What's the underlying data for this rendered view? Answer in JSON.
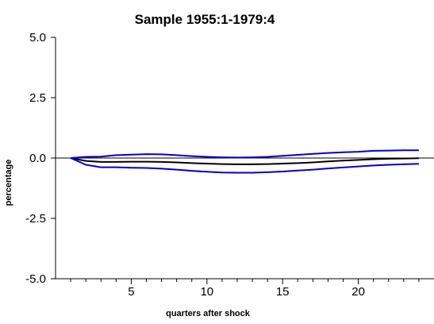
{
  "chart_data": {
    "type": "line",
    "title": "Sample 1955:1-1979:4",
    "xlabel": "quarters after shock",
    "ylabel": "percentage",
    "xlim": [
      0,
      25
    ],
    "ylim": [
      -5.0,
      5.0
    ],
    "xticks": [
      5,
      10,
      15,
      20
    ],
    "yticks": [
      "5.0",
      "2.5",
      "0.0",
      "-2.5",
      "-5.0"
    ],
    "yticks_values": [
      5.0,
      2.5,
      0.0,
      -2.5,
      -5.0
    ],
    "x": [
      1,
      2,
      3,
      4,
      5,
      6,
      7,
      8,
      9,
      10,
      11,
      12,
      13,
      14,
      15,
      16,
      17,
      18,
      19,
      20,
      21,
      22,
      23,
      24
    ],
    "series": [
      {
        "color": "#000000",
        "values": [
          0.0,
          -0.12,
          -0.16,
          -0.16,
          -0.15,
          -0.15,
          -0.16,
          -0.18,
          -0.21,
          -0.23,
          -0.25,
          -0.26,
          -0.26,
          -0.25,
          -0.23,
          -0.21,
          -0.18,
          -0.14,
          -0.11,
          -0.08,
          -0.05,
          -0.03,
          -0.02,
          -0.01
        ]
      },
      {
        "color": "#0000cc",
        "values": [
          0.0,
          0.05,
          0.06,
          0.12,
          0.14,
          0.16,
          0.15,
          0.12,
          0.08,
          0.05,
          0.03,
          0.02,
          0.03,
          0.05,
          0.09,
          0.13,
          0.17,
          0.21,
          0.24,
          0.26,
          0.3,
          0.31,
          0.32,
          0.32
        ]
      },
      {
        "color": "#0000cc",
        "values": [
          0.0,
          -0.28,
          -0.38,
          -0.38,
          -0.4,
          -0.41,
          -0.44,
          -0.48,
          -0.53,
          -0.57,
          -0.6,
          -0.61,
          -0.61,
          -0.59,
          -0.56,
          -0.52,
          -0.48,
          -0.43,
          -0.39,
          -0.35,
          -0.31,
          -0.28,
          -0.26,
          -0.24
        ]
      }
    ],
    "grid": false,
    "legend": "none"
  }
}
